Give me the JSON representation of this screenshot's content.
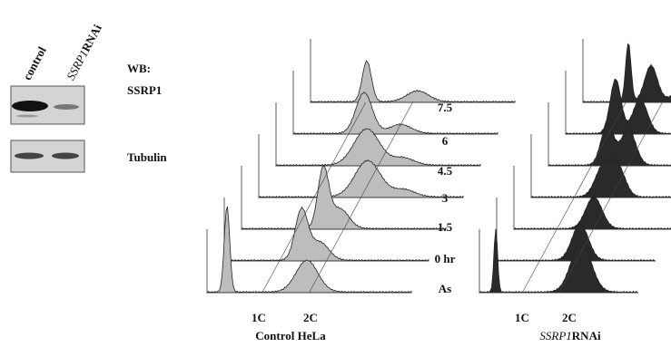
{
  "blot": {
    "lanes": [
      "control",
      {
        "gene": "SSRP1",
        "suffix": "RNAi"
      }
    ],
    "wb_label": "WB:",
    "rows": [
      "SSRP1",
      "Tubulin"
    ]
  },
  "time_labels": [
    "7.5",
    "6",
    "4.5",
    "3",
    "1.5",
    "0 hr",
    "As"
  ],
  "panels": [
    {
      "markers": [
        "1C",
        "2C"
      ],
      "caption": "Control HeLa"
    },
    {
      "markers": [
        "1C",
        "2C"
      ],
      "caption": {
        "gene": "SSRP1",
        "suffix": "RNAi"
      }
    }
  ]
}
